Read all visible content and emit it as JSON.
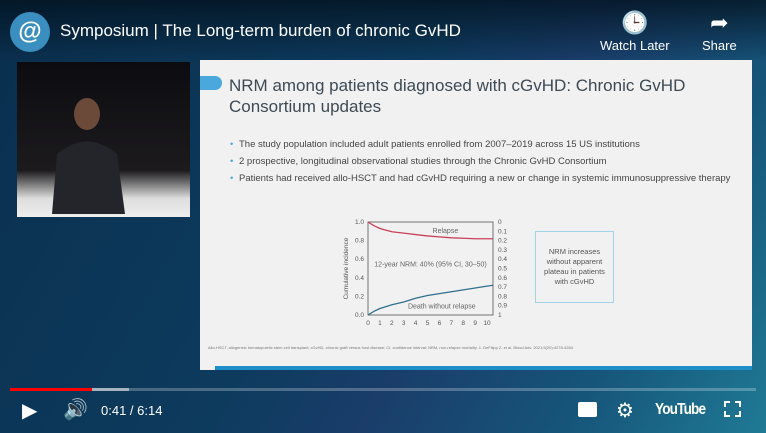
{
  "header": {
    "title": "Symposium | The Long-term burden of chronic GvHD",
    "watch_later": "Watch Later",
    "share": "Share"
  },
  "slide": {
    "title": "NRM among patients diagnosed with cGvHD: Chronic GvHD Consortium updates",
    "bullets": [
      "The study population included adult patients enrolled from 2007–2019 across 15 US institutions",
      "2 prospective, longitudinal observational studies through the Chronic GvHD Consortium",
      "Patients had received allo-HSCT and had cGvHD requiring a new or change in systemic immunosuppressive therapy"
    ],
    "callout": "NRM increases without apparent plateau in patients with cGvHD",
    "footnote": "Allo-HSCT, allogeneic hematopoietic stem cell transplant; cGvHD, chronic graft versus host disease; CI, confidence interval; NRM, non-relapse mortality. 1. DeFilipp Z, et al. Blood Adv. 2021;5(20):4278-4284."
  },
  "chart_data": {
    "type": "line",
    "ylabel": "Cumulative incidence",
    "xlim": [
      0,
      10.5
    ],
    "ylim": [
      0,
      1
    ],
    "ylim_right": [
      1,
      0
    ],
    "x_ticks": [
      "0",
      "1",
      "2",
      "3",
      "4",
      "5",
      "6",
      "7",
      "8",
      "9",
      "10"
    ],
    "y_ticks": [
      "0.0",
      "0.2",
      "0.4",
      "0.6",
      "0.8",
      "1.0"
    ],
    "y_ticks_right": [
      "0",
      "0.1",
      "0.2",
      "0.3",
      "0.4",
      "0.5",
      "0.6",
      "0.7",
      "0.8",
      "0.9",
      "1"
    ],
    "annotation": "12-year NRM: 40% (95% CI, 30–50)",
    "series": [
      {
        "name": "Relapse",
        "color": "#c8405a",
        "x": [
          0,
          0.5,
          1,
          2,
          3,
          4,
          5,
          6,
          7,
          8,
          9,
          10,
          10.5
        ],
        "y": [
          1.0,
          0.96,
          0.93,
          0.895,
          0.88,
          0.865,
          0.85,
          0.84,
          0.83,
          0.825,
          0.82,
          0.82,
          0.82
        ]
      },
      {
        "name": "Death without relapse",
        "color": "#2f6f8f",
        "x": [
          0,
          0.5,
          1,
          2,
          3,
          4,
          5,
          6,
          7,
          8,
          9,
          10,
          10.5
        ],
        "y": [
          0,
          0.04,
          0.07,
          0.11,
          0.14,
          0.18,
          0.21,
          0.23,
          0.25,
          0.27,
          0.29,
          0.31,
          0.32
        ]
      }
    ]
  },
  "player": {
    "time": "0:41 / 6:14",
    "played_fraction": 0.11,
    "buffered_fraction": 0.16,
    "brand": "YouTube"
  },
  "colors": {
    "progress": "#ff0000",
    "accent": "#4aa8dc"
  }
}
